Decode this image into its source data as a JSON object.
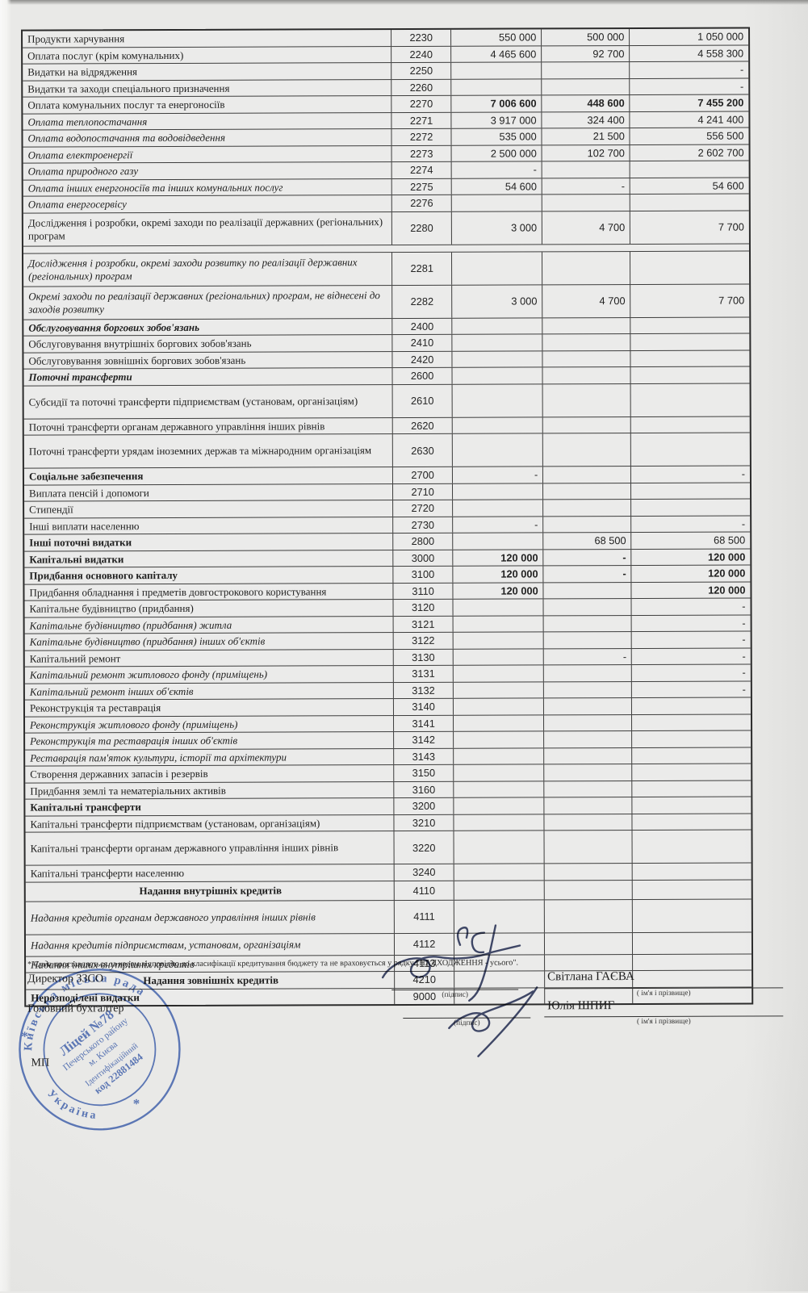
{
  "colors": {
    "paper": "#e9e9e7",
    "ink": "#1f1f1f",
    "stamp_blue": "#3b5ca8",
    "signature_ink": "#3f4766"
  },
  "table": {
    "rows": [
      {
        "code": "2230",
        "name": "Продукти харчування",
        "style": "r",
        "v": [
          "550 000",
          "500 000",
          "1 050 000"
        ]
      },
      {
        "code": "2240",
        "name": "Оплата послуг (крім комунальних)",
        "style": "r",
        "v": [
          "4 465 600",
          "92 700",
          "4 558 300"
        ]
      },
      {
        "code": "2250",
        "name": "Видатки на відрядження",
        "style": "r",
        "v": [
          "",
          "",
          "-"
        ]
      },
      {
        "code": "2260",
        "name": "Видатки та заходи спеціального призначення",
        "style": "r",
        "v": [
          "",
          "",
          "-"
        ]
      },
      {
        "code": "2270",
        "name": "Оплата комунальних послуг та енергоносіїв",
        "style": "r",
        "boldv": true,
        "v": [
          "7 006 600",
          "448 600",
          "7 455 200"
        ]
      },
      {
        "code": "2271",
        "name": "Оплата теплопостачання",
        "style": "i",
        "v": [
          "3 917 000",
          "324 400",
          "4 241 400"
        ]
      },
      {
        "code": "2272",
        "name": "Оплата водопостачання та водовідведення",
        "style": "i",
        "v": [
          "535 000",
          "21 500",
          "556 500"
        ]
      },
      {
        "code": "2273",
        "name": "Оплата електроенергії",
        "style": "i",
        "v": [
          "2 500 000",
          "102 700",
          "2 602 700"
        ]
      },
      {
        "code": "2274",
        "name": "Оплата природного газу",
        "style": "i",
        "v": [
          "-",
          "",
          ""
        ]
      },
      {
        "code": "2275",
        "name": "Оплата інших енергоносіїв та інших комунальних послуг",
        "style": "i",
        "v": [
          "54 600",
          "-",
          "54 600"
        ]
      },
      {
        "code": "2276",
        "name": "Оплата енергосервісу",
        "style": "i",
        "v": [
          "",
          "",
          ""
        ]
      },
      {
        "code": "2280",
        "name": "Дослідження і розробки, окремі заходи по реалізації державних (регіональних) програм",
        "style": "r",
        "tall": true,
        "v": [
          "3 000",
          "4 700",
          "7 700"
        ]
      },
      {
        "spacer": true
      },
      {
        "code": "2281",
        "name": "Дослідження і розробки, окремі заходи розвитку по реалізації державних (регіональних) програм",
        "style": "i",
        "tall": true,
        "v": [
          "",
          "",
          ""
        ]
      },
      {
        "code": "2282",
        "name": "Окремі заходи по реалізації державних (регіональних) програм, не віднесені до заходів розвитку",
        "style": "i",
        "tall": true,
        "v": [
          "3 000",
          "4 700",
          "7 700"
        ]
      },
      {
        "code": "2400",
        "name": "Обслуговування боргових зобов'язань",
        "style": "bi",
        "v": [
          "",
          "",
          ""
        ]
      },
      {
        "code": "2410",
        "name": "Обслуговування внутрішніх боргових зобов'язань",
        "style": "r",
        "v": [
          "",
          "",
          ""
        ]
      },
      {
        "code": "2420",
        "name": "Обслуговування зовнішніх боргових зобов'язань",
        "style": "r",
        "v": [
          "",
          "",
          ""
        ]
      },
      {
        "code": "2600",
        "name": "Поточні трансферти",
        "style": "bi",
        "v": [
          "",
          "",
          ""
        ]
      },
      {
        "code": "2610",
        "name": "Субсидії та поточні трансферти підприємствам (установам, організаціям)",
        "style": "r",
        "tall": true,
        "v": [
          "",
          "",
          ""
        ]
      },
      {
        "code": "2620",
        "name": "Поточні трансферти органам державного управління інших рівнів",
        "style": "r",
        "v": [
          "",
          "",
          ""
        ]
      },
      {
        "code": "2630",
        "name": "Поточні трансферти урядам іноземних держав та міжнародним організаціям",
        "style": "r",
        "tall": true,
        "v": [
          "",
          "",
          ""
        ]
      },
      {
        "code": "2700",
        "name": "Соціальне забезпечення",
        "style": "b",
        "v": [
          "-",
          "",
          "-"
        ]
      },
      {
        "code": "2710",
        "name": "Виплата пенсій і допомоги",
        "style": "r",
        "v": [
          "",
          "",
          ""
        ]
      },
      {
        "code": "2720",
        "name": "Стипендії",
        "style": "r",
        "v": [
          "",
          "",
          ""
        ]
      },
      {
        "code": "2730",
        "name": "Інші виплати населенню",
        "style": "r",
        "v": [
          "-",
          "",
          "-"
        ]
      },
      {
        "code": "2800",
        "name": "Інші поточні видатки",
        "style": "b",
        "v": [
          "",
          "68 500",
          "68 500"
        ]
      },
      {
        "code": "3000",
        "name": "Капітальні видатки",
        "style": "b",
        "boldv": true,
        "v": [
          "120 000",
          "-",
          "120 000"
        ]
      },
      {
        "code": "3100",
        "name": "Придбання основного капіталу",
        "style": "b",
        "boldv": true,
        "v": [
          "120 000",
          "-",
          "120 000"
        ]
      },
      {
        "code": "3110",
        "name": "Придбання обладнання і предметів довгострокового користування",
        "style": "r",
        "boldv": true,
        "v": [
          "120 000",
          "",
          "120 000"
        ]
      },
      {
        "code": "3120",
        "name": "Капітальне будівництво (придбання)",
        "style": "r",
        "v": [
          "",
          "",
          "-"
        ]
      },
      {
        "code": "3121",
        "name": "Капітальне будівництво (придбання) житла",
        "style": "i",
        "v": [
          "",
          "",
          "-"
        ]
      },
      {
        "code": "3122",
        "name": "Капітальне будівництво (придбання) інших об'єктів",
        "style": "i",
        "v": [
          "",
          "",
          "-"
        ]
      },
      {
        "code": "3130",
        "name": "Капітальний ремонт",
        "style": "r",
        "v": [
          "",
          "-",
          "-"
        ]
      },
      {
        "code": "3131",
        "name": "Капітальний ремонт житлового фонду (приміщень)",
        "style": "i",
        "v": [
          "",
          "",
          "-"
        ]
      },
      {
        "code": "3132",
        "name": "Капітальний ремонт інших об'єктів",
        "style": "i",
        "v": [
          "",
          "",
          "-"
        ]
      },
      {
        "code": "3140",
        "name": "Реконструкція та реставрація",
        "style": "r",
        "v": [
          "",
          "",
          ""
        ]
      },
      {
        "code": "3141",
        "name": "Реконструкція житлового фонду (приміщень)",
        "style": "i",
        "v": [
          "",
          "",
          ""
        ]
      },
      {
        "code": "3142",
        "name": "Реконструкція та реставрація інших об'єктів",
        "style": "i",
        "v": [
          "",
          "",
          ""
        ]
      },
      {
        "code": "3143",
        "name": "Реставрація пам'яток культури, історії та архітектури",
        "style": "i",
        "v": [
          "",
          "",
          ""
        ]
      },
      {
        "code": "3150",
        "name": "Створення державних запасів і резервів",
        "style": "r",
        "v": [
          "",
          "",
          ""
        ]
      },
      {
        "code": "3160",
        "name": "Придбання землі та нематеріальних активів",
        "style": "r",
        "v": [
          "",
          "",
          ""
        ]
      },
      {
        "code": "3200",
        "name": "Капітальні трансферти",
        "style": "b",
        "v": [
          "",
          "",
          ""
        ]
      },
      {
        "code": "3210",
        "name": "Капітальні трансферти підприємствам (установам, організаціям)",
        "style": "r",
        "v": [
          "",
          "",
          ""
        ]
      },
      {
        "code": "3220",
        "name": "Капітальні трансферти органам державного управління інших рівнів",
        "style": "r",
        "tall": true,
        "v": [
          "",
          "",
          ""
        ]
      },
      {
        "code": "3240",
        "name": "Капітальні трансферти населенню",
        "style": "r",
        "v": [
          "",
          "",
          ""
        ]
      },
      {
        "code": "4110",
        "name": "Надання внутрішніх кредитів",
        "style": "bc",
        "h": 23,
        "v": [
          "",
          "",
          ""
        ]
      },
      {
        "code": "4111",
        "name": "Надання кредитів органам державного управління інших рівнів",
        "style": "i",
        "tall": true,
        "v": [
          "",
          "",
          ""
        ]
      },
      {
        "code": "4112",
        "name": "Надання кредитів  підприємствам, установам, організаціям",
        "style": "i",
        "h": 26,
        "v": [
          "",
          "",
          ""
        ]
      },
      {
        "code": "4113",
        "name": "Надання інших внутрішніх кредитів",
        "style": "i",
        "v": [
          "",
          "",
          ""
        ]
      },
      {
        "code": "4210",
        "name": "Надання зовнішніх кредитів",
        "style": "bc",
        "v": [
          "",
          "",
          ""
        ]
      },
      {
        "code": "9000",
        "name": "Нерозподілені видатки",
        "style": "b",
        "v": [
          "",
          "",
          ""
        ]
      }
    ]
  },
  "footnote": "* Сума проставляється за кодом відповідно до класифікації кредитування бюджету та не враховується у рядку \"НАДХОДЖЕННЯ - усього\".",
  "signatures": {
    "director_label": "Директор ЗЗСО",
    "accountant_label": "Головний бухгалтер",
    "mp_label": "МП",
    "sign_caption": "(підпис)",
    "name_caption": "( ім'я і прізвище)",
    "director_name": "Світлана ГАЄВА",
    "accountant_name": "Юлія ШПИГ"
  },
  "stamp": {
    "ring_top": "Київська  міська  рада",
    "ring_bottom": "Україна",
    "line1": "Ліцей №78",
    "line2": "Печерського району",
    "line3": "м. Києва",
    "line4": "Ідентифікаційний",
    "line5": "код 22881484",
    "star": "*"
  }
}
